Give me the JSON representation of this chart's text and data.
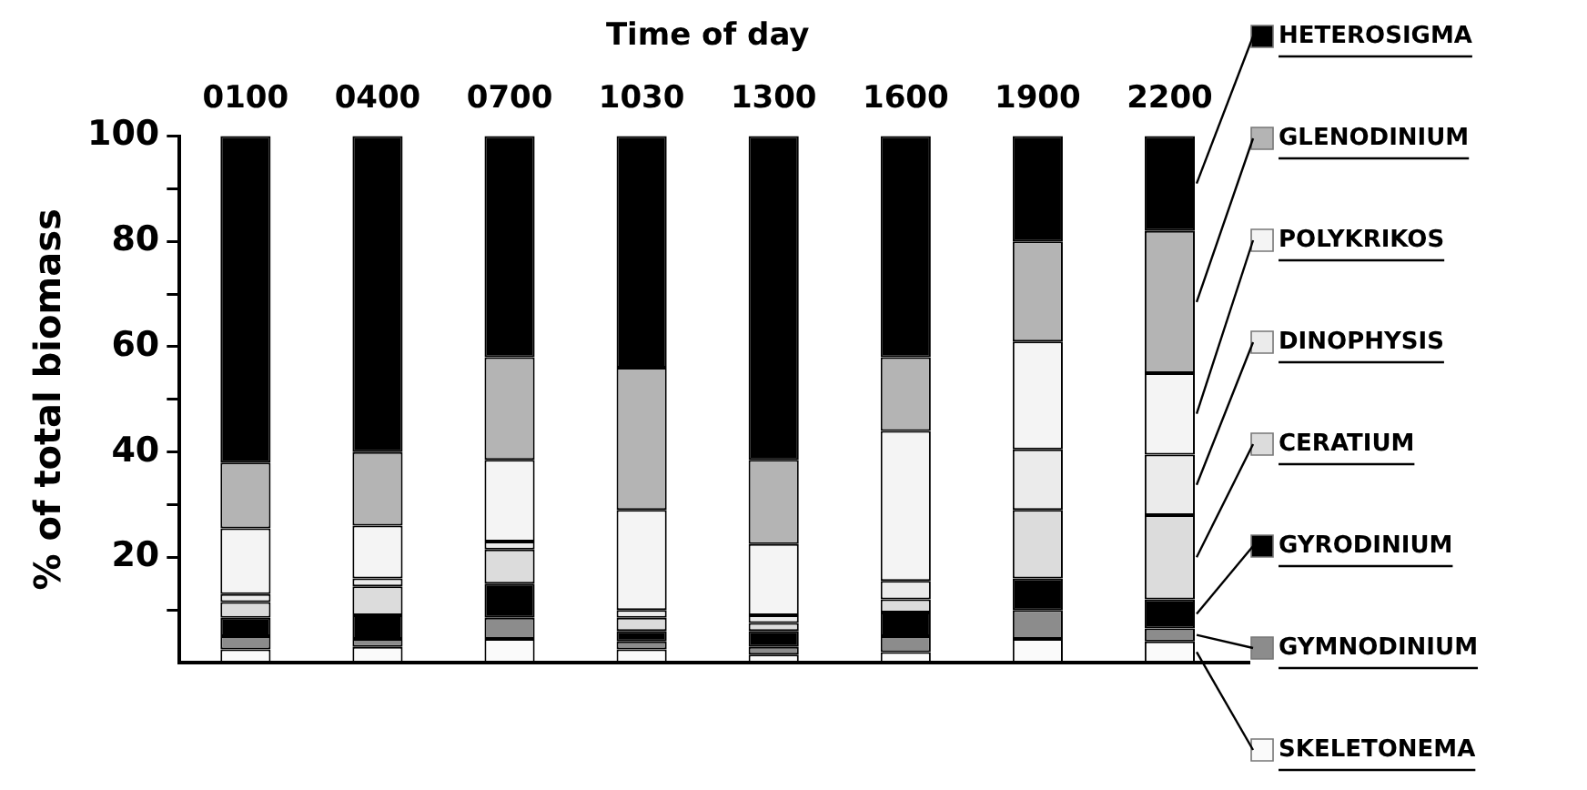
{
  "chart_data": {
    "type": "bar",
    "stacked": true,
    "xlabel": "Time of day",
    "ylabel": "% of total biomass",
    "categories": [
      "0100",
      "0400",
      "0700",
      "1030",
      "1300",
      "1600",
      "1900",
      "2200"
    ],
    "ylim": [
      0,
      100
    ],
    "yticks": [
      {
        "value": 10,
        "label": null
      },
      20,
      {
        "value": 30,
        "label": null
      },
      40,
      {
        "value": 50,
        "label": null
      },
      60,
      {
        "value": 70,
        "label": null
      },
      80,
      {
        "value": 90,
        "label": null
      },
      100
    ],
    "legend": "right",
    "grid": false,
    "series": [
      {
        "name": "SKELETONEMA",
        "color": "#fafafa",
        "values": [
          2.5,
          3,
          4.5,
          2.5,
          1.5,
          2,
          4.5,
          4
        ]
      },
      {
        "name": "GYMNODINIUM",
        "color": "#8c8c8c",
        "values": [
          2.5,
          1.5,
          4,
          1.5,
          1.5,
          3,
          5.5,
          2.5
        ]
      },
      {
        "name": "GYRODINIUM",
        "color": "#000000",
        "values": [
          3.5,
          4.5,
          6.5,
          2,
          3,
          4.5,
          6,
          5.5
        ]
      },
      {
        "name": "CERATIUM",
        "color": "#dcdcdc",
        "values": [
          3,
          5.5,
          6.5,
          2.5,
          1.5,
          2.5,
          13,
          16
        ]
      },
      {
        "name": "DINOPHYSIS",
        "color": "#ebebeb",
        "values": [
          1.5,
          1.5,
          1.5,
          1.5,
          1.5,
          3.5,
          11.5,
          11.5
        ]
      },
      {
        "name": "POLYKRIKOS",
        "color": "#f4f4f4",
        "values": [
          12.5,
          10,
          15.5,
          19,
          13.5,
          28.5,
          20.5,
          15.5
        ]
      },
      {
        "name": "GLENODINIUM",
        "color": "#b4b4b4",
        "values": [
          12.5,
          14,
          19.5,
          27,
          16,
          14,
          19,
          27
        ]
      },
      {
        "name": "HETEROSIGMA",
        "color": "#000000",
        "values": [
          62,
          60,
          42,
          44,
          61.5,
          42,
          20,
          18
        ]
      }
    ]
  }
}
